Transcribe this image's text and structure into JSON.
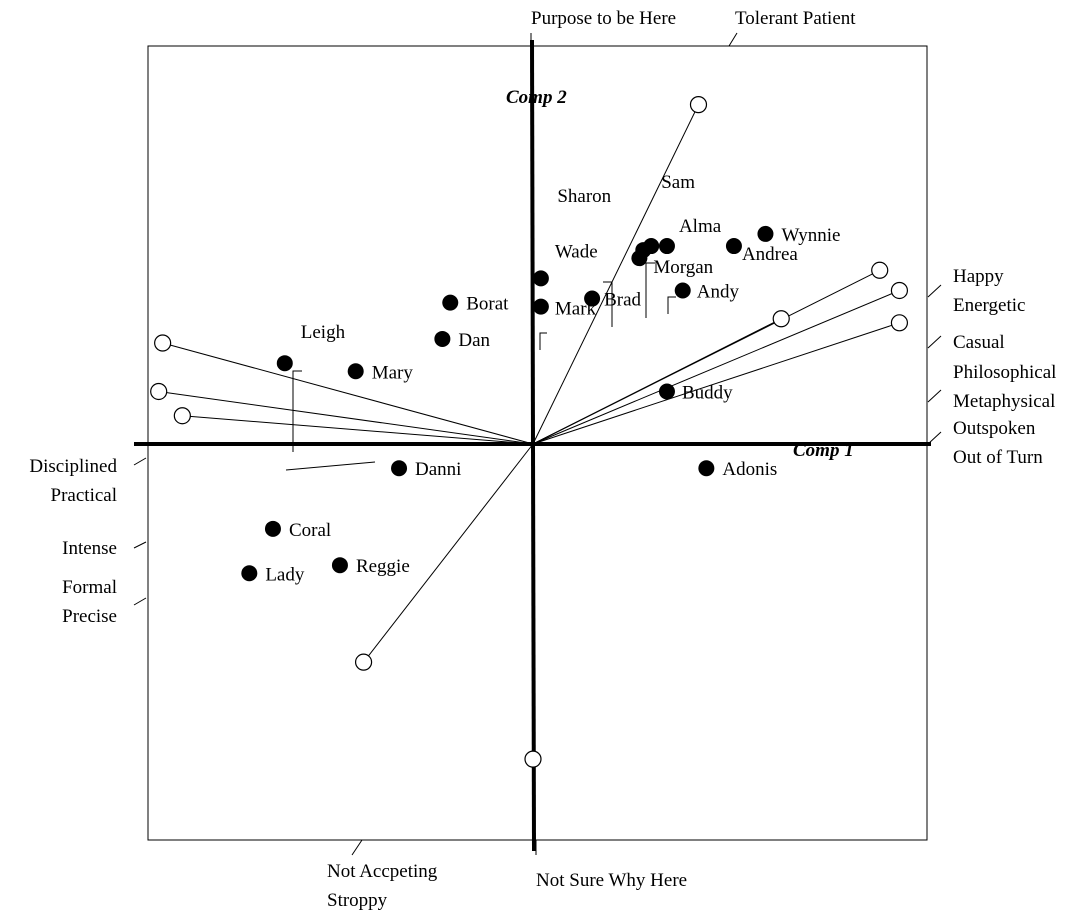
{
  "chart_data": {
    "type": "scatter",
    "title": "",
    "x_axis_label": "Comp 1",
    "y_axis_label": "Comp 2",
    "xlim": [
      -1.0,
      1.0
    ],
    "ylim": [
      -1.0,
      1.0
    ],
    "grid": false,
    "legend": "none",
    "persons": [
      {
        "name": "Sharon",
        "x": 0.28,
        "y": 0.48
      },
      {
        "name": "Sam",
        "x": 0.3,
        "y": 0.49
      },
      {
        "name": "Alma",
        "x": 0.34,
        "y": 0.49
      },
      {
        "name": "Wynnie",
        "x": 0.59,
        "y": 0.52
      },
      {
        "name": "Andrea",
        "x": 0.51,
        "y": 0.49
      },
      {
        "name": "Morgan",
        "x": 0.27,
        "y": 0.46
      },
      {
        "name": "Wade",
        "x": 0.02,
        "y": 0.41
      },
      {
        "name": "Brad",
        "x": 0.15,
        "y": 0.36
      },
      {
        "name": "Andy",
        "x": 0.38,
        "y": 0.38
      },
      {
        "name": "Borat",
        "x": -0.21,
        "y": 0.35
      },
      {
        "name": "Mark",
        "x": 0.02,
        "y": 0.34
      },
      {
        "name": "Dan",
        "x": -0.23,
        "y": 0.26
      },
      {
        "name": "Leigh",
        "x": -0.63,
        "y": 0.2
      },
      {
        "name": "Mary",
        "x": -0.45,
        "y": 0.18
      },
      {
        "name": "Buddy",
        "x": 0.34,
        "y": 0.13
      },
      {
        "name": "Adonis",
        "x": 0.44,
        "y": -0.06
      },
      {
        "name": "Danni",
        "x": -0.34,
        "y": -0.06
      },
      {
        "name": "Coral",
        "x": -0.66,
        "y": -0.21
      },
      {
        "name": "Reggie",
        "x": -0.49,
        "y": -0.3
      },
      {
        "name": "Lady",
        "x": -0.72,
        "y": -0.32
      }
    ],
    "vectors": [
      {
        "labels": [
          "Purpose to be Here",
          "Tolerant Patient"
        ],
        "x": 0.42,
        "y": 0.84,
        "side": "top"
      },
      {
        "labels": [
          "Happy",
          "Energetic"
        ],
        "x": 0.88,
        "y": 0.43,
        "side": "right"
      },
      {
        "labels": [
          "Casual"
        ],
        "x": 0.93,
        "y": 0.38,
        "side": "right"
      },
      {
        "labels": [
          "Philosophical",
          "Metaphysical"
        ],
        "x": 0.63,
        "y": 0.31,
        "side": "right"
      },
      {
        "labels": [
          "Outspoken",
          "Out of Turn"
        ],
        "x": 0.93,
        "y": 0.3,
        "side": "right"
      },
      {
        "labels": [
          "Disciplined",
          "Practical"
        ],
        "x": -0.94,
        "y": 0.25,
        "side": "left"
      },
      {
        "labels": [
          "Intense"
        ],
        "x": -0.95,
        "y": 0.13,
        "side": "left"
      },
      {
        "labels": [
          "Formal",
          "Precise"
        ],
        "x": -0.89,
        "y": 0.07,
        "side": "left"
      },
      {
        "labels": [
          "Not Accpeting",
          "Stroppy"
        ],
        "x": -0.43,
        "y": -0.54,
        "side": "bottom"
      },
      {
        "labels": [
          "Not Sure Why Here"
        ],
        "x": 0.0,
        "y": -0.78,
        "side": "bottom"
      }
    ]
  }
}
